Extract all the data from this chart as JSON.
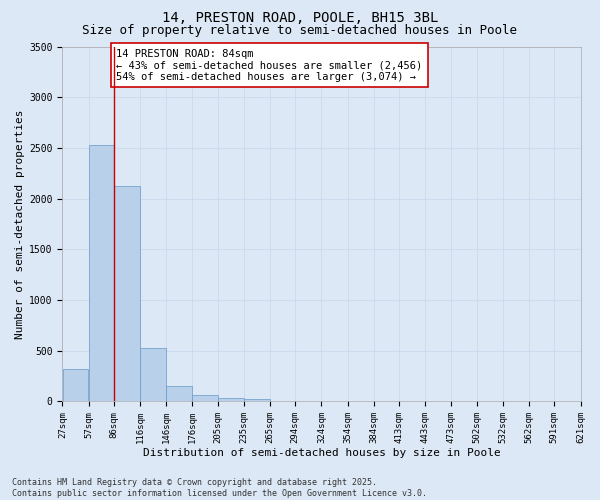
{
  "title_line1": "14, PRESTON ROAD, POOLE, BH15 3BL",
  "title_line2": "Size of property relative to semi-detached houses in Poole",
  "xlabel": "Distribution of semi-detached houses by size in Poole",
  "ylabel": "Number of semi-detached properties",
  "bar_left_edges": [
    27,
    57,
    86,
    116,
    146,
    176,
    205,
    235,
    265,
    294,
    324,
    354,
    384,
    413,
    443,
    473,
    502,
    532,
    562,
    591
  ],
  "bar_widths": [
    30,
    29,
    30,
    30,
    30,
    29,
    30,
    30,
    29,
    30,
    30,
    30,
    29,
    30,
    30,
    29,
    30,
    30,
    29,
    30
  ],
  "bar_heights": [
    320,
    2530,
    2120,
    530,
    155,
    60,
    35,
    20,
    0,
    0,
    0,
    0,
    0,
    0,
    0,
    0,
    0,
    0,
    0,
    0
  ],
  "bar_color": "#b8d0ea",
  "bar_edge_color": "#6699cc",
  "property_line_x": 86,
  "property_line_color": "#cc0000",
  "annotation_text": "14 PRESTON ROAD: 84sqm\n← 43% of semi-detached houses are smaller (2,456)\n54% of semi-detached houses are larger (3,074) →",
  "annotation_box_color": "#ffffff",
  "annotation_box_edge_color": "#cc0000",
  "ylim": [
    0,
    3500
  ],
  "yticks": [
    0,
    500,
    1000,
    1500,
    2000,
    2500,
    3000,
    3500
  ],
  "tick_labels": [
    "27sqm",
    "57sqm",
    "86sqm",
    "116sqm",
    "146sqm",
    "176sqm",
    "205sqm",
    "235sqm",
    "265sqm",
    "294sqm",
    "324sqm",
    "354sqm",
    "384sqm",
    "413sqm",
    "443sqm",
    "473sqm",
    "502sqm",
    "532sqm",
    "562sqm",
    "591sqm",
    "621sqm"
  ],
  "grid_color": "#ccd8ec",
  "background_color": "#dce8f5",
  "footer_text": "Contains HM Land Registry data © Crown copyright and database right 2025.\nContains public sector information licensed under the Open Government Licence v3.0.",
  "title_fontsize": 10,
  "subtitle_fontsize": 9,
  "axis_label_fontsize": 8,
  "tick_fontsize": 6.5,
  "annotation_fontsize": 7.5,
  "footer_fontsize": 6
}
